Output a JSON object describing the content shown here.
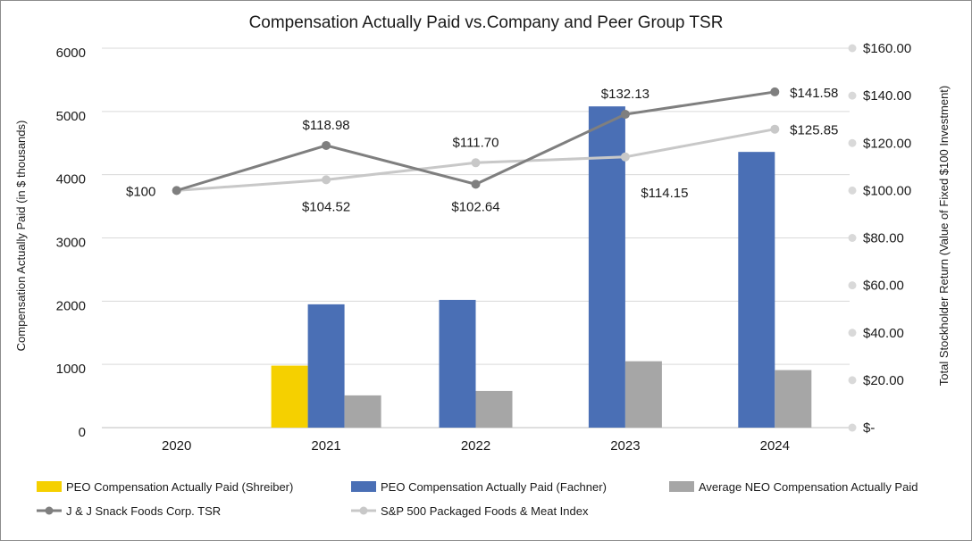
{
  "chart_data": {
    "type": "bar",
    "title": "Compensation Actually Paid vs.Company and Peer Group TSR",
    "ylabel": "Compensation Actually Paid (in $ thousands)",
    "y2label": "Total Stockholder Return (Value of Fixed $100 Investment)",
    "categories": [
      "2020",
      "2021",
      "2022",
      "2023",
      "2024"
    ],
    "ylim": [
      0,
      6000
    ],
    "y2lim": [
      0,
      160
    ],
    "yticks": [
      "0",
      "1000",
      "2000",
      "3000",
      "4000",
      "5000",
      "6000"
    ],
    "y2ticks": [
      "$-",
      "$20.00",
      "$40.00",
      "$60.00",
      "$80.00",
      "$100.00",
      "$120.00",
      "$140.00",
      "$160.00"
    ],
    "grid": true,
    "legend_position": "bottom",
    "bar_series": [
      {
        "name": "PEO Compensation Actually Paid (Shreiber)",
        "color": "#f5d000",
        "values": [
          null,
          980,
          null,
          null,
          null
        ]
      },
      {
        "name": "PEO Compensation Actually Paid (Fachner)",
        "color": "#4a6fb5",
        "values": [
          null,
          1950,
          2020,
          5080,
          4360
        ]
      },
      {
        "name": "Average NEO Compensation Actually Paid",
        "color": "#a6a6a6",
        "values": [
          null,
          510,
          580,
          1050,
          910
        ]
      }
    ],
    "line_series": [
      {
        "name": "J & J Snack Foods Corp. TSR",
        "color": "#7f7f7f",
        "values": [
          100,
          118.98,
          102.64,
          132.13,
          141.58
        ],
        "labels": [
          "$100",
          "$118.98",
          "$102.64",
          "$132.13",
          "$141.58"
        ]
      },
      {
        "name": "S&P 500 Packaged Foods & Meat Index",
        "color": "#c8c8c8",
        "values": [
          100,
          104.52,
          111.7,
          114.15,
          125.85
        ],
        "labels": [
          "",
          "$104.52",
          "$111.70",
          "$114.15",
          "$125.85"
        ]
      }
    ]
  }
}
